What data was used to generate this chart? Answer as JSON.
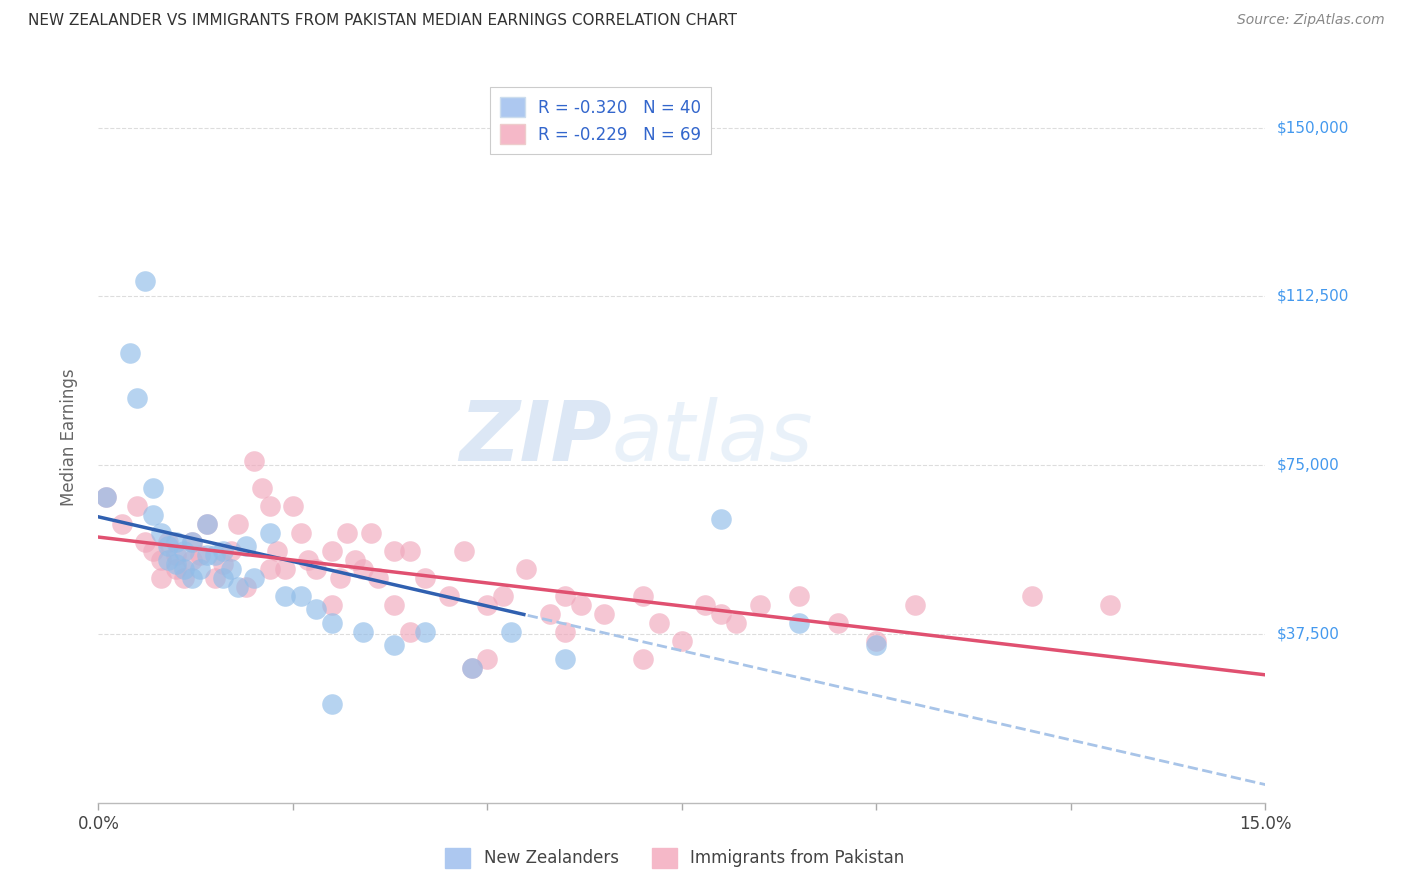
{
  "title": "NEW ZEALANDER VS IMMIGRANTS FROM PAKISTAN MEDIAN EARNINGS CORRELATION CHART",
  "source": "Source: ZipAtlas.com",
  "ylabel": "Median Earnings",
  "xlim": [
    0.0,
    0.15
  ],
  "ylim": [
    0,
    162500
  ],
  "yticks": [
    37500,
    75000,
    112500,
    150000
  ],
  "ytick_labels": [
    "$37,500",
    "$75,000",
    "$112,500",
    "$150,000"
  ],
  "xticks": [
    0.0,
    0.025,
    0.05,
    0.075,
    0.1,
    0.125,
    0.15
  ],
  "xtick_labels": [
    "0.0%",
    "",
    "",
    "",
    "",
    "",
    "15.0%"
  ],
  "legend_entries": [
    {
      "label": "R = -0.320   N = 40",
      "color": "#adc8f0"
    },
    {
      "label": "R = -0.229   N = 69",
      "color": "#f5b8c8"
    }
  ],
  "legend_bottom": [
    "New Zealanders",
    "Immigrants from Pakistan"
  ],
  "blue_color": "#90bce8",
  "pink_color": "#f0a8bc",
  "blue_line_color": "#3060b0",
  "pink_line_color": "#e05070",
  "dashed_line_color": "#a8c4e8",
  "watermark_zip": "ZIP",
  "watermark_atlas": "atlas",
  "grid_color": "#dddddd",
  "ylabel_color": "#666666",
  "ytick_color": "#4499ee",
  "blue_scatter_x": [
    0.001,
    0.004,
    0.005,
    0.006,
    0.007,
    0.007,
    0.008,
    0.009,
    0.009,
    0.01,
    0.01,
    0.011,
    0.011,
    0.012,
    0.012,
    0.013,
    0.014,
    0.014,
    0.015,
    0.016,
    0.016,
    0.017,
    0.018,
    0.019,
    0.02,
    0.022,
    0.024,
    0.026,
    0.028,
    0.03,
    0.034,
    0.038,
    0.042,
    0.048,
    0.053,
    0.06,
    0.08,
    0.09,
    0.1,
    0.03
  ],
  "blue_scatter_y": [
    68000,
    100000,
    90000,
    116000,
    70000,
    64000,
    60000,
    57000,
    54000,
    58000,
    53000,
    56000,
    52000,
    58000,
    50000,
    52000,
    55000,
    62000,
    55000,
    50000,
    56000,
    52000,
    48000,
    57000,
    50000,
    60000,
    46000,
    46000,
    43000,
    40000,
    38000,
    35000,
    38000,
    30000,
    38000,
    32000,
    63000,
    40000,
    35000,
    22000
  ],
  "pink_scatter_x": [
    0.001,
    0.003,
    0.005,
    0.006,
    0.007,
    0.008,
    0.008,
    0.009,
    0.01,
    0.01,
    0.011,
    0.012,
    0.012,
    0.013,
    0.014,
    0.015,
    0.016,
    0.017,
    0.018,
    0.019,
    0.02,
    0.021,
    0.022,
    0.023,
    0.024,
    0.025,
    0.026,
    0.027,
    0.028,
    0.03,
    0.031,
    0.032,
    0.033,
    0.034,
    0.035,
    0.036,
    0.038,
    0.04,
    0.042,
    0.045,
    0.047,
    0.05,
    0.052,
    0.055,
    0.058,
    0.06,
    0.062,
    0.065,
    0.07,
    0.072,
    0.075,
    0.078,
    0.08,
    0.082,
    0.085,
    0.09,
    0.095,
    0.1,
    0.105,
    0.12,
    0.13,
    0.022,
    0.03,
    0.04,
    0.05,
    0.06,
    0.07,
    0.038,
    0.048
  ],
  "pink_scatter_y": [
    68000,
    62000,
    66000,
    58000,
    56000,
    54000,
    50000,
    58000,
    52000,
    55000,
    50000,
    54000,
    58000,
    55000,
    62000,
    50000,
    53000,
    56000,
    62000,
    48000,
    76000,
    70000,
    66000,
    56000,
    52000,
    66000,
    60000,
    54000,
    52000,
    56000,
    50000,
    60000,
    54000,
    52000,
    60000,
    50000,
    44000,
    56000,
    50000,
    46000,
    56000,
    44000,
    46000,
    52000,
    42000,
    46000,
    44000,
    42000,
    46000,
    40000,
    36000,
    44000,
    42000,
    40000,
    44000,
    46000,
    40000,
    36000,
    44000,
    46000,
    44000,
    52000,
    44000,
    38000,
    32000,
    38000,
    32000,
    56000,
    30000
  ]
}
